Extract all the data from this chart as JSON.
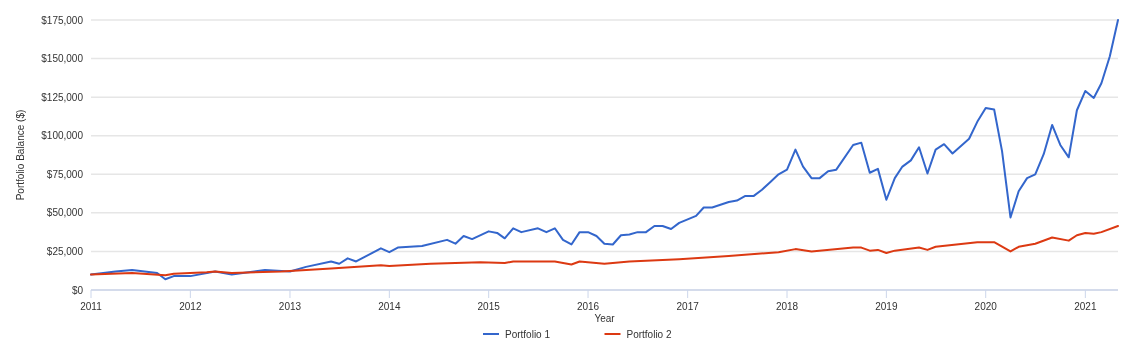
{
  "chart_data": {
    "type": "line",
    "xlabel": "Year",
    "ylabel": "Portfolio Balance ($)",
    "xlim": [
      "2011-01",
      "2021-05"
    ],
    "xticks": [
      {
        "value": "2011",
        "label": "2011"
      },
      {
        "value": "2012",
        "label": "2012"
      },
      {
        "value": "2013",
        "label": "2013"
      },
      {
        "value": "2014",
        "label": "2014"
      },
      {
        "value": "2015",
        "label": "2015"
      },
      {
        "value": "2016",
        "label": "2016"
      },
      {
        "value": "2017",
        "label": "2017"
      },
      {
        "value": "2018",
        "label": "2018"
      },
      {
        "value": "2019",
        "label": "2019"
      },
      {
        "value": "2020",
        "label": "2020"
      },
      {
        "value": "2021",
        "label": "2021"
      }
    ],
    "ylim": [
      0,
      175000
    ],
    "yticks": [
      {
        "value": 0,
        "label": "$0"
      },
      {
        "value": 25000,
        "label": "$25,000"
      },
      {
        "value": 50000,
        "label": "$50,000"
      },
      {
        "value": 75000,
        "label": "$75,000"
      },
      {
        "value": 100000,
        "label": "$100,000"
      },
      {
        "value": 125000,
        "label": "$125,000"
      },
      {
        "value": 150000,
        "label": "$150,000"
      },
      {
        "value": 175000,
        "label": "$175,000"
      }
    ],
    "grid": "y",
    "legend": "bottom",
    "marker": "none",
    "line_style": "solid",
    "series": [
      {
        "name": "Portfolio 1",
        "color": "#3366cc",
        "x": [
          "2011-01",
          "2011-04",
          "2011-06",
          "2011-09",
          "2011-10",
          "2011-11",
          "2012-01",
          "2012-04",
          "2012-06",
          "2012-10",
          "2013-01",
          "2013-03",
          "2013-06",
          "2013-07",
          "2013-08",
          "2013-09",
          "2013-12",
          "2014-01",
          "2014-02",
          "2014-05",
          "2014-08",
          "2014-09",
          "2014-10",
          "2014-11",
          "2015-01",
          "2015-02",
          "2015-03",
          "2015-04",
          "2015-05",
          "2015-07",
          "2015-08",
          "2015-09",
          "2015-10",
          "2015-11",
          "2015-12",
          "2016-01",
          "2016-02",
          "2016-03",
          "2016-04",
          "2016-05",
          "2016-06",
          "2016-07",
          "2016-08",
          "2016-09",
          "2016-10",
          "2016-11",
          "2016-12",
          "2017-02",
          "2017-03",
          "2017-04",
          "2017-06",
          "2017-07",
          "2017-08",
          "2017-09",
          "2017-10",
          "2017-11",
          "2017-12",
          "2018-01",
          "2018-02",
          "2018-03",
          "2018-04",
          "2018-05",
          "2018-06",
          "2018-07",
          "2018-09",
          "2018-10",
          "2018-11",
          "2018-12",
          "2019-01",
          "2019-02",
          "2019-03",
          "2019-04",
          "2019-05",
          "2019-06",
          "2019-07",
          "2019-08",
          "2019-09",
          "2019-11",
          "2019-12",
          "2020-01",
          "2020-02",
          "2020-03",
          "2020-04",
          "2020-05",
          "2020-06",
          "2020-07",
          "2020-08",
          "2020-09",
          "2020-10",
          "2020-11",
          "2020-12",
          "2021-01",
          "2021-02",
          "2021-03",
          "2021-04",
          "2021-05"
        ],
        "values": [
          10000,
          12000,
          13000,
          11000,
          7000,
          9000,
          9000,
          12000,
          10000,
          13000,
          12000,
          15000,
          18500,
          17000,
          20500,
          18500,
          27000,
          24500,
          27500,
          28500,
          32500,
          30000,
          35000,
          33000,
          38000,
          37000,
          33500,
          40000,
          37500,
          40000,
          37500,
          40000,
          32500,
          29500,
          37500,
          37500,
          35000,
          30000,
          29500,
          35500,
          36000,
          37500,
          37500,
          41500,
          41500,
          39500,
          43500,
          48000,
          53500,
          53500,
          57000,
          58000,
          61000,
          61000,
          65000,
          70000,
          75000,
          78000,
          91000,
          80000,
          72500,
          72500,
          77000,
          78000,
          94000,
          95500,
          76000,
          78500,
          58500,
          72500,
          80000,
          84000,
          92500,
          75500,
          91000,
          94500,
          88500,
          98000,
          109000,
          118000,
          117000,
          90000,
          47000,
          64000,
          72500,
          75000,
          88000,
          107000,
          94000,
          86000,
          116500,
          129000,
          124500,
          134000,
          151500,
          175000
        ]
      },
      {
        "name": "Portfolio 2",
        "color": "#dc3912",
        "x": [
          "2011-01",
          "2011-06",
          "2011-10",
          "2011-11",
          "2012-03",
          "2012-04",
          "2012-06",
          "2012-12",
          "2013-06",
          "2013-12",
          "2014-01",
          "2014-06",
          "2014-12",
          "2015-03",
          "2015-04",
          "2015-09",
          "2015-11",
          "2015-12",
          "2016-03",
          "2016-04",
          "2016-06",
          "2016-12",
          "2017-06",
          "2017-12",
          "2018-02",
          "2018-04",
          "2018-09",
          "2018-10",
          "2018-11",
          "2018-12",
          "2019-01",
          "2019-02",
          "2019-05",
          "2019-06",
          "2019-07",
          "2019-12",
          "2020-02",
          "2020-04",
          "2020-05",
          "2020-07",
          "2020-09",
          "2020-11",
          "2020-12",
          "2021-01",
          "2021-02",
          "2021-03",
          "2021-05"
        ],
        "values": [
          10000,
          11000,
          9500,
          10500,
          11500,
          12000,
          11000,
          12000,
          14000,
          16000,
          15500,
          17000,
          18000,
          17500,
          18500,
          18500,
          16500,
          18500,
          17000,
          17500,
          18500,
          20000,
          22000,
          24500,
          26500,
          25000,
          27500,
          27500,
          25500,
          26000,
          24000,
          25500,
          27500,
          26000,
          28000,
          31000,
          31000,
          25000,
          28000,
          30000,
          34000,
          32000,
          35500,
          37000,
          36500,
          37500,
          41500
        ]
      }
    ]
  }
}
